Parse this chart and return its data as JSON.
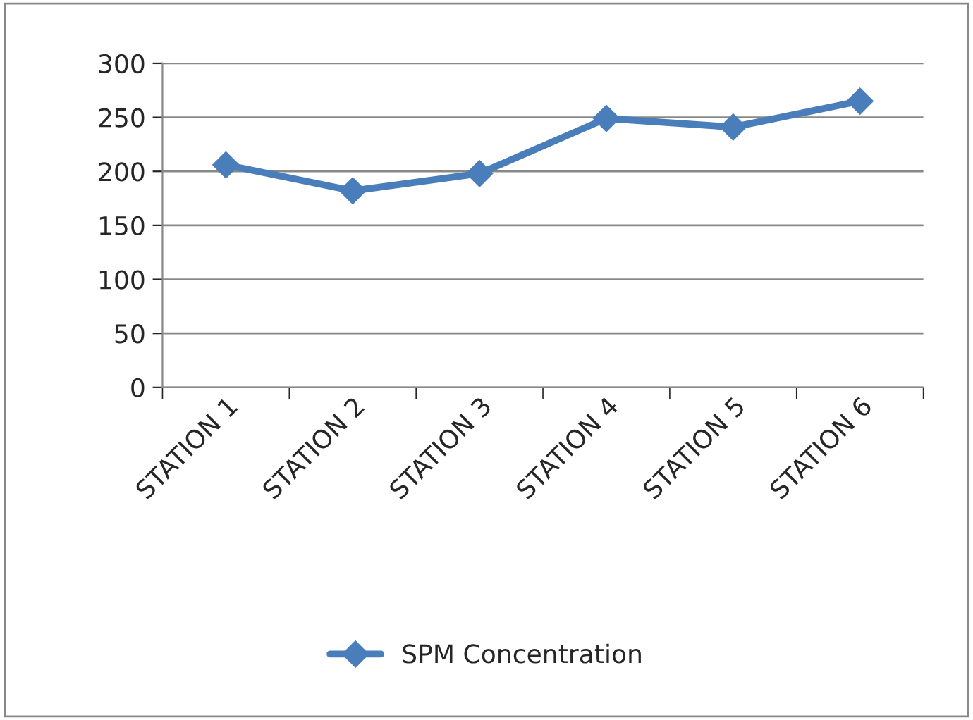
{
  "chart_data": {
    "type": "line",
    "categories": [
      "STATION 1",
      "STATION 2",
      "STATION 3",
      "STATION 4",
      "STATION 5",
      "STATION 6"
    ],
    "series": [
      {
        "name": "SPM Concentration",
        "color": "#4a7ebb",
        "values": [
          206,
          182,
          198,
          249,
          241,
          265
        ]
      }
    ],
    "ylim": [
      0,
      300
    ],
    "yticks": [
      0,
      50,
      100,
      150,
      200,
      250,
      300
    ],
    "grid": "y",
    "legend": "bottom",
    "marker": "diamond",
    "line_style": "solid"
  }
}
